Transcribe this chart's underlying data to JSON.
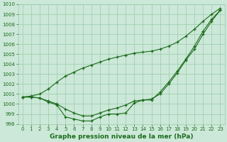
{
  "title": "Graphe pression niveau de la mer (hPa)",
  "x": [
    0,
    1,
    2,
    3,
    4,
    5,
    6,
    7,
    8,
    9,
    10,
    11,
    12,
    13,
    14,
    15,
    16,
    17,
    18,
    19,
    20,
    21,
    22,
    23
  ],
  "line1": [
    1000.7,
    1000.7,
    1000.6,
    1000.2,
    999.9,
    998.7,
    998.5,
    998.3,
    998.3,
    998.7,
    999.0,
    999.0,
    999.1,
    1000.1,
    1000.4,
    1000.4,
    1001.2,
    1002.2,
    1003.3,
    1004.5,
    1005.8,
    1007.3,
    1008.5,
    1009.4
  ],
  "line2": [
    1000.7,
    1000.8,
    1001.0,
    1001.5,
    1002.2,
    1002.8,
    1003.2,
    1003.6,
    1003.9,
    1004.2,
    1004.5,
    1004.7,
    1004.9,
    1005.1,
    1005.2,
    1005.3,
    1005.5,
    1005.8,
    1006.2,
    1006.8,
    1007.5,
    1008.3,
    1009.0,
    1009.6
  ],
  "line3": [
    1000.7,
    1000.7,
    1000.6,
    1000.3,
    1000.0,
    999.5,
    999.1,
    998.8,
    998.8,
    999.1,
    999.4,
    999.6,
    999.9,
    1000.3,
    1000.4,
    1000.5,
    1001.0,
    1002.0,
    1003.1,
    1004.4,
    1005.5,
    1007.0,
    1008.3,
    1009.4
  ],
  "ylim": [
    998,
    1010
  ],
  "xlim": [
    -0.5,
    23.5
  ],
  "yticks": [
    998,
    999,
    1000,
    1001,
    1002,
    1003,
    1004,
    1005,
    1006,
    1007,
    1008,
    1009,
    1010
  ],
  "xticks": [
    0,
    1,
    2,
    3,
    4,
    5,
    6,
    7,
    8,
    9,
    10,
    11,
    12,
    13,
    14,
    15,
    16,
    17,
    18,
    19,
    20,
    21,
    22,
    23
  ],
  "line_color": "#1a6b1a",
  "bg_color": "#cce8d8",
  "grid_color": "#99ccaa",
  "marker": "+",
  "marker_size": 3.5,
  "linewidth": 0.8,
  "tick_fontsize": 5.0,
  "xlabel_fontsize": 6.5
}
